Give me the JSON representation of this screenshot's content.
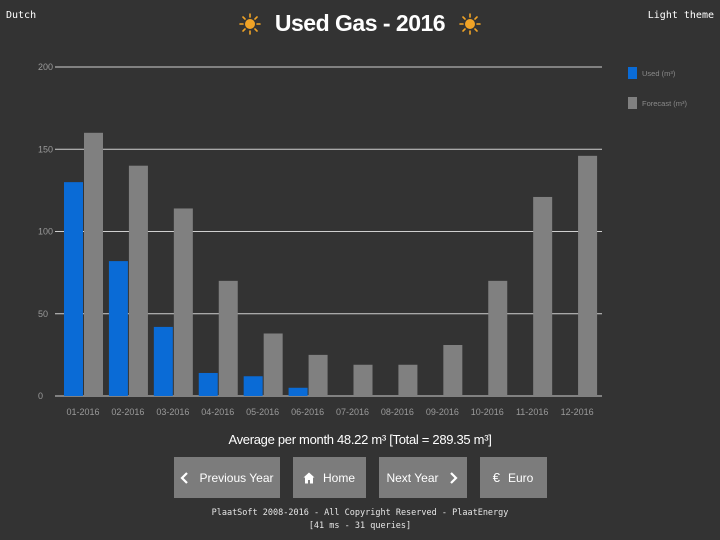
{
  "header": {
    "language_link": "Dutch",
    "title": "Used Gas - 2016",
    "theme_link": "Light theme"
  },
  "colors": {
    "background": "#333333",
    "used": "#0a6bd6",
    "forecast": "#808080",
    "gridline": "#cfcfcf",
    "button": "#7c7c7c",
    "sun": "#f0a326"
  },
  "chart_data": {
    "type": "bar",
    "categories": [
      "01-2016",
      "02-2016",
      "03-2016",
      "04-2016",
      "05-2016",
      "06-2016",
      "07-2016",
      "08-2016",
      "09-2016",
      "10-2016",
      "11-2016",
      "12-2016"
    ],
    "series": [
      {
        "name": "Used (m³)",
        "values": [
          130,
          82,
          42,
          14,
          12,
          5,
          0,
          0,
          0,
          0,
          0,
          0
        ]
      },
      {
        "name": "Forecast (m³)",
        "values": [
          160,
          140,
          114,
          70,
          38,
          25,
          19,
          19,
          31,
          70,
          121,
          146
        ]
      }
    ],
    "yticks": [
      0,
      50,
      100,
      150,
      200
    ],
    "ylim": [
      0,
      200
    ],
    "grid": true,
    "legend_position": "right"
  },
  "summary": "Average per month 48.22 m³ [Total = 289.35 m³]",
  "buttons": {
    "previous_label": "Previous Year",
    "home_label": "Home",
    "next_label": "Next Year",
    "euro_label": "Euro"
  },
  "icons": {
    "previous": "chevron-left-icon",
    "home": "home-icon",
    "next": "chevron-right-icon",
    "euro": "euro-icon",
    "title": "sun-icon"
  },
  "footer": {
    "line1": "PlaatSoft 2008-2016 - All Copyright Reserved - PlaatEnergy",
    "line2": "[41 ms - 31 queries]"
  }
}
